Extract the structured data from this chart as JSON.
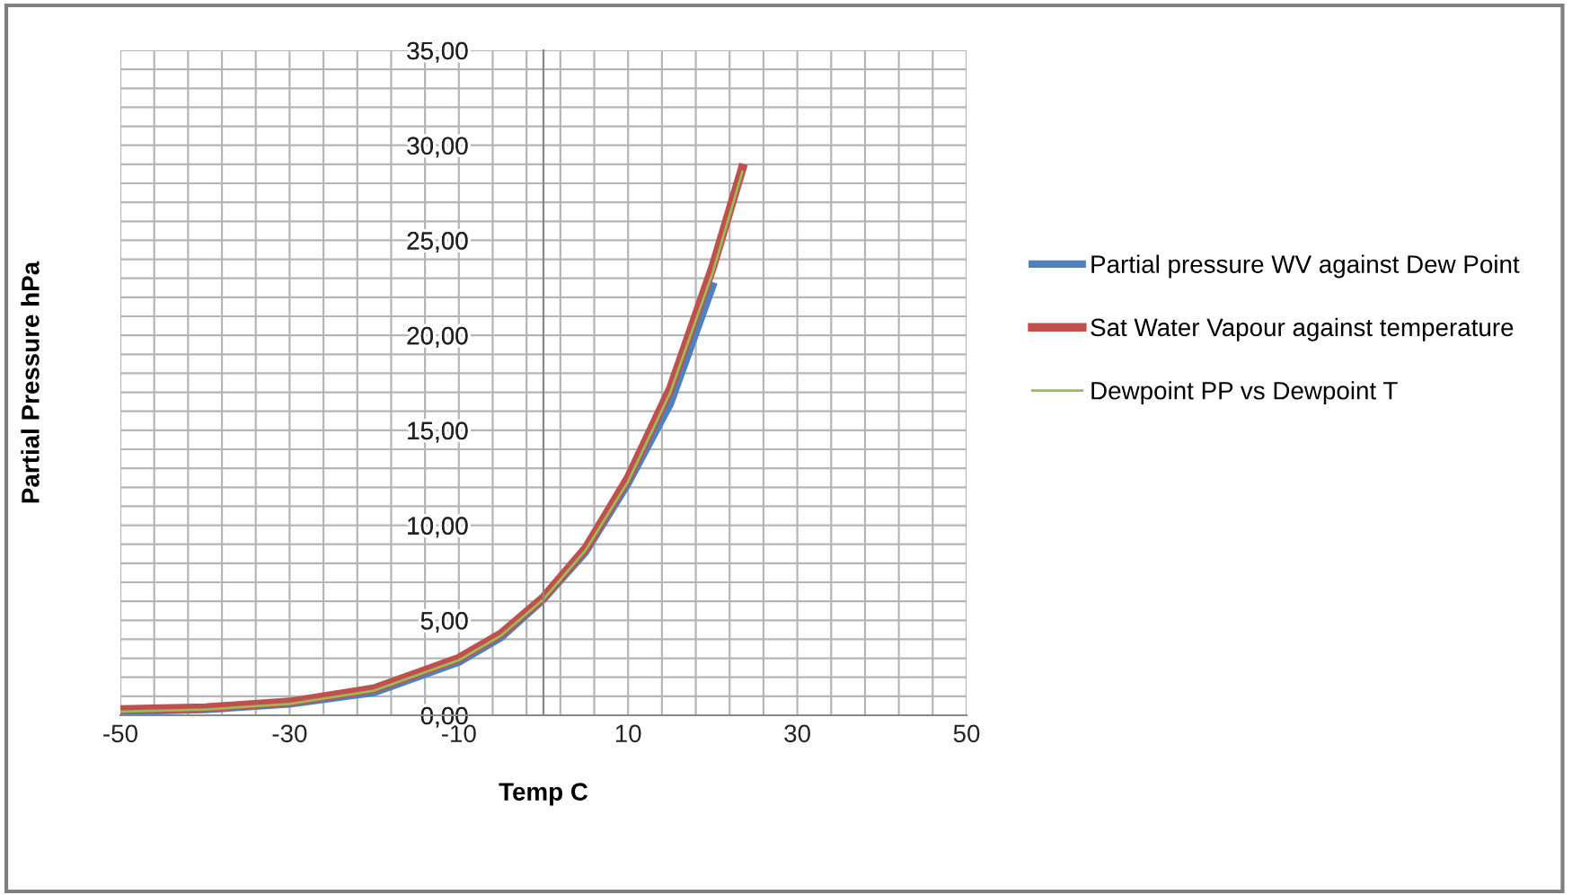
{
  "chart_data": {
    "type": "line",
    "xlabel": "Temp C",
    "ylabel": "Partial Pressure hPa",
    "series": [
      {
        "name": "Partial pressure WV against Dew Point",
        "color": "#4f81bd",
        "x": [
          -50,
          -40,
          -30,
          -20,
          -10,
          -5,
          0,
          5,
          10,
          15,
          20
        ],
        "values": [
          0.2,
          0.3,
          0.6,
          1.2,
          2.8,
          4.1,
          6.1,
          8.6,
          12.2,
          16.4,
          22.6
        ]
      },
      {
        "name": "Sat Water Vapour against temperature",
        "color": "#c0504d",
        "x": [
          -50,
          -40,
          -30,
          -20,
          -10,
          -5,
          0,
          5,
          10,
          15,
          20,
          23.5
        ],
        "values": [
          0.3,
          0.4,
          0.7,
          1.4,
          3.0,
          4.3,
          6.2,
          8.8,
          12.5,
          17.2,
          23.6,
          28.8
        ]
      },
      {
        "name": "Dewpoint PP vs Dewpoint T",
        "color": "#9bbb59",
        "x": [
          -50,
          -40,
          -30,
          -20,
          -10,
          -5,
          0,
          5,
          10,
          15,
          20,
          23.5
        ],
        "values": [
          0.2,
          0.3,
          0.6,
          1.3,
          2.9,
          4.2,
          6.1,
          8.7,
          12.3,
          17.0,
          23.3,
          28.6
        ]
      }
    ],
    "xlim": [
      -50,
      50
    ],
    "xticks": [
      -50,
      {
        "value": -46,
        "label": null
      },
      {
        "value": -42,
        "label": null
      },
      {
        "value": -38,
        "label": null
      },
      {
        "value": -34,
        "label": null
      },
      -30,
      {
        "value": -26,
        "label": null
      },
      {
        "value": -22,
        "label": null
      },
      {
        "value": -18,
        "label": null
      },
      {
        "value": -14,
        "label": null
      },
      -10,
      {
        "value": -6,
        "label": null
      },
      {
        "value": -2,
        "label": null
      },
      {
        "value": 2,
        "label": null
      },
      {
        "value": 6,
        "label": null
      },
      10,
      {
        "value": 14,
        "label": null
      },
      {
        "value": 18,
        "label": null
      },
      {
        "value": 22,
        "label": null
      },
      {
        "value": 26,
        "label": null
      },
      30,
      {
        "value": 34,
        "label": null
      },
      {
        "value": 38,
        "label": null
      },
      {
        "value": 42,
        "label": null
      },
      {
        "value": 46,
        "label": null
      },
      50
    ],
    "ylim": [
      0,
      35
    ],
    "yticks": [
      {
        "value": 0,
        "label": "0,00"
      },
      {
        "value": 1,
        "label": null
      },
      {
        "value": 2,
        "label": null
      },
      {
        "value": 3,
        "label": null
      },
      {
        "value": 4,
        "label": null
      },
      {
        "value": 5,
        "label": "5,00"
      },
      {
        "value": 6,
        "label": null
      },
      {
        "value": 7,
        "label": null
      },
      {
        "value": 8,
        "label": null
      },
      {
        "value": 9,
        "label": null
      },
      {
        "value": 10,
        "label": "10,00"
      },
      {
        "value": 11,
        "label": null
      },
      {
        "value": 12,
        "label": null
      },
      {
        "value": 13,
        "label": null
      },
      {
        "value": 14,
        "label": null
      },
      {
        "value": 15,
        "label": "15,00"
      },
      {
        "value": 16,
        "label": null
      },
      {
        "value": 17,
        "label": null
      },
      {
        "value": 18,
        "label": null
      },
      {
        "value": 19,
        "label": null
      },
      {
        "value": 20,
        "label": "20,00"
      },
      {
        "value": 21,
        "label": null
      },
      {
        "value": 22,
        "label": null
      },
      {
        "value": 23,
        "label": null
      },
      {
        "value": 24,
        "label": null
      },
      {
        "value": 25,
        "label": "25,00"
      },
      {
        "value": 26,
        "label": null
      },
      {
        "value": 27,
        "label": null
      },
      {
        "value": 28,
        "label": null
      },
      {
        "value": 29,
        "label": null
      },
      {
        "value": 30,
        "label": "30,00"
      },
      {
        "value": 31,
        "label": null
      },
      {
        "value": 32,
        "label": null
      },
      {
        "value": 33,
        "label": null
      },
      {
        "value": 34,
        "label": null
      },
      {
        "value": 35,
        "label": "35,00"
      }
    ],
    "grid": true,
    "legend": "right",
    "marker": "none",
    "line_style": "solid"
  }
}
